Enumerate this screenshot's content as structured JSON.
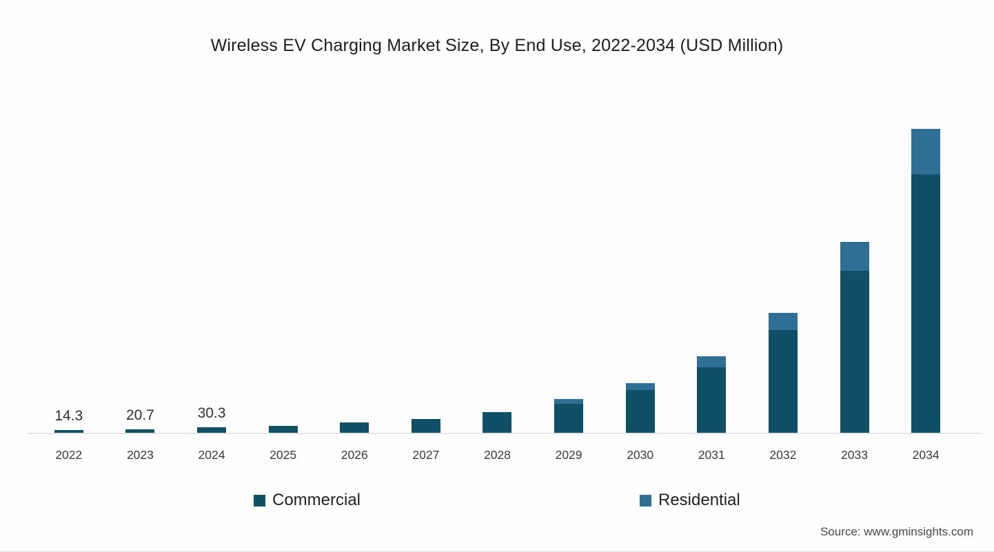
{
  "page": {
    "title": "Wireless EV Charging Market Size, By End Use, 2022-2034 (USD Million)",
    "source": "Source: www.gminsights.com"
  },
  "legend": {
    "items": [
      {
        "label": "Commercial"
      },
      {
        "label": "Residential"
      }
    ]
  },
  "chart_data": {
    "type": "bar",
    "stacked": true,
    "title": "Wireless EV Charging Market Size, By End Use, 2022-2034 (USD Million)",
    "xlabel": "",
    "ylabel": "USD Million",
    "legend_position": "bottom",
    "grid": false,
    "y_axis_shown": false,
    "categories": [
      "2022",
      "2023",
      "2024",
      "2025",
      "2026",
      "2027",
      "2028",
      "2029",
      "2030",
      "2031",
      "2032",
      "2033",
      "2034"
    ],
    "series": [
      {
        "name": "Commercial",
        "color": "#0F5067",
        "values": [
          14.3,
          20.7,
          30.3,
          38,
          55,
          75,
          113,
          161,
          235,
          361,
          565,
          890,
          1421
        ]
      },
      {
        "name": "Residential",
        "color": "#2F6F96",
        "values": [
          0,
          0,
          0,
          0,
          0,
          0,
          0,
          25,
          38,
          60,
          95,
          160,
          250
        ]
      }
    ],
    "shown_point_labels": {
      "2022": "14.3",
      "2023": "20.7",
      "2024": "30.3"
    },
    "axis_line_color": "#E5E5E5"
  }
}
